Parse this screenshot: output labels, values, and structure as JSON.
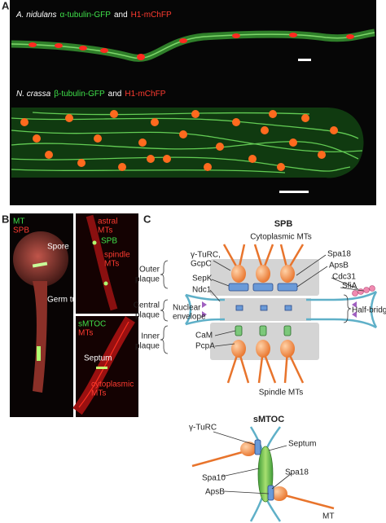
{
  "panel_a": {
    "label": "A",
    "images": [
      {
        "species": "A. nidulans",
        "marker": "α-tubulin-GFP",
        "joiner": "and",
        "marker2": "H1-mChFP"
      },
      {
        "species": "N. crassa",
        "marker": "β-tubulin-GFP",
        "joiner": "and",
        "marker2": "H1-mChFP"
      }
    ]
  },
  "panel_b": {
    "label": "B",
    "left": {
      "legend": [
        "MT",
        "SPB"
      ],
      "spore": "Spore",
      "germ_tube": [
        "Germ tube"
      ]
    },
    "right_top": {
      "astral": [
        "astral",
        "MTs"
      ],
      "spb": "SPB",
      "spindle": [
        "spindle",
        "MTs"
      ]
    },
    "right_bottom": {
      "legend": [
        "sMTOC",
        "MTs"
      ],
      "septum": "Septum",
      "cytoplasmic": [
        "cytoplasmic",
        "MTs"
      ]
    }
  },
  "panel_c": {
    "label": "C",
    "spb": {
      "title": "SPB",
      "cytoplasmic_mts": "Cytoplasmic MTs",
      "spindle_mts": "Spindle MTs",
      "left_labels": {
        "gamma_turc": [
          "γ-TuRC,",
          "GcpC"
        ],
        "sepk": "SepK",
        "ndc1": "Ndc1",
        "nuclear_envelope": [
          "Nuclear",
          "envelope"
        ],
        "cam": "CaM",
        "pcpa": "PcpA"
      },
      "plaques": {
        "outer": [
          "Outer",
          "plaque"
        ],
        "central": [
          "Central",
          "plaque"
        ],
        "inner": [
          "Inner",
          "plaque"
        ]
      },
      "right_labels": {
        "spa18": "Spa18",
        "apsb": "ApsB",
        "cdc31": "Cdc31",
        "sfia": "SfiA",
        "half_bridge": "Half-bridge"
      }
    },
    "smtoc": {
      "title": "sMTOC",
      "gamma_turc": "γ-TuRC",
      "septum": "Septum",
      "spa10": "Spa10",
      "spa18": "Spa18",
      "apsb": "ApsB",
      "mt": "MT"
    }
  }
}
